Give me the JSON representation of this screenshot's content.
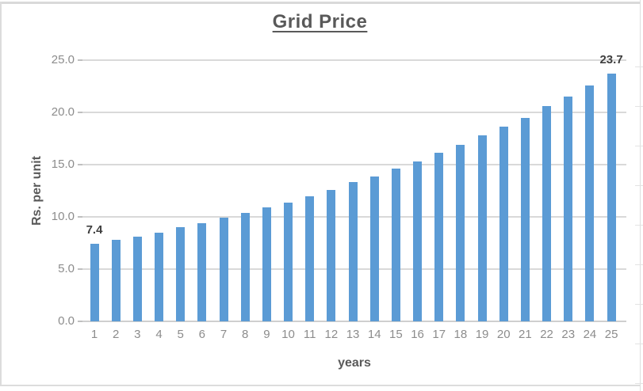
{
  "window": {
    "background_color": "#ffffff",
    "chart_border_color": "#d9d9d9"
  },
  "chart_data": {
    "type": "bar",
    "title": "Grid Price",
    "xlabel": "years",
    "ylabel": "Rs. per unit",
    "categories": [
      "1",
      "2",
      "3",
      "4",
      "5",
      "6",
      "7",
      "8",
      "9",
      "10",
      "11",
      "12",
      "13",
      "14",
      "15",
      "16",
      "17",
      "18",
      "19",
      "20",
      "21",
      "22",
      "23",
      "24",
      "25"
    ],
    "values": [
      7.4,
      7.8,
      8.1,
      8.5,
      9.0,
      9.4,
      9.9,
      10.4,
      10.9,
      11.4,
      12.0,
      12.6,
      13.3,
      13.9,
      14.6,
      15.3,
      16.1,
      16.9,
      17.8,
      18.6,
      19.5,
      20.6,
      21.5,
      22.6,
      23.7
    ],
    "ylim": [
      0,
      25
    ],
    "ytick_values": [
      0,
      5,
      10,
      15,
      20,
      25
    ],
    "ytick_labels": [
      "0.0",
      "5.0",
      "10.0",
      "15.0",
      "20.0",
      "25.0"
    ],
    "grid": true,
    "legend": "none",
    "bar_color": "#5b9bd5",
    "gridline_color": "#d9d9d9",
    "data_labels": [
      {
        "index": 0,
        "text": "7.4"
      },
      {
        "index": 24,
        "text": "23.7"
      }
    ]
  }
}
